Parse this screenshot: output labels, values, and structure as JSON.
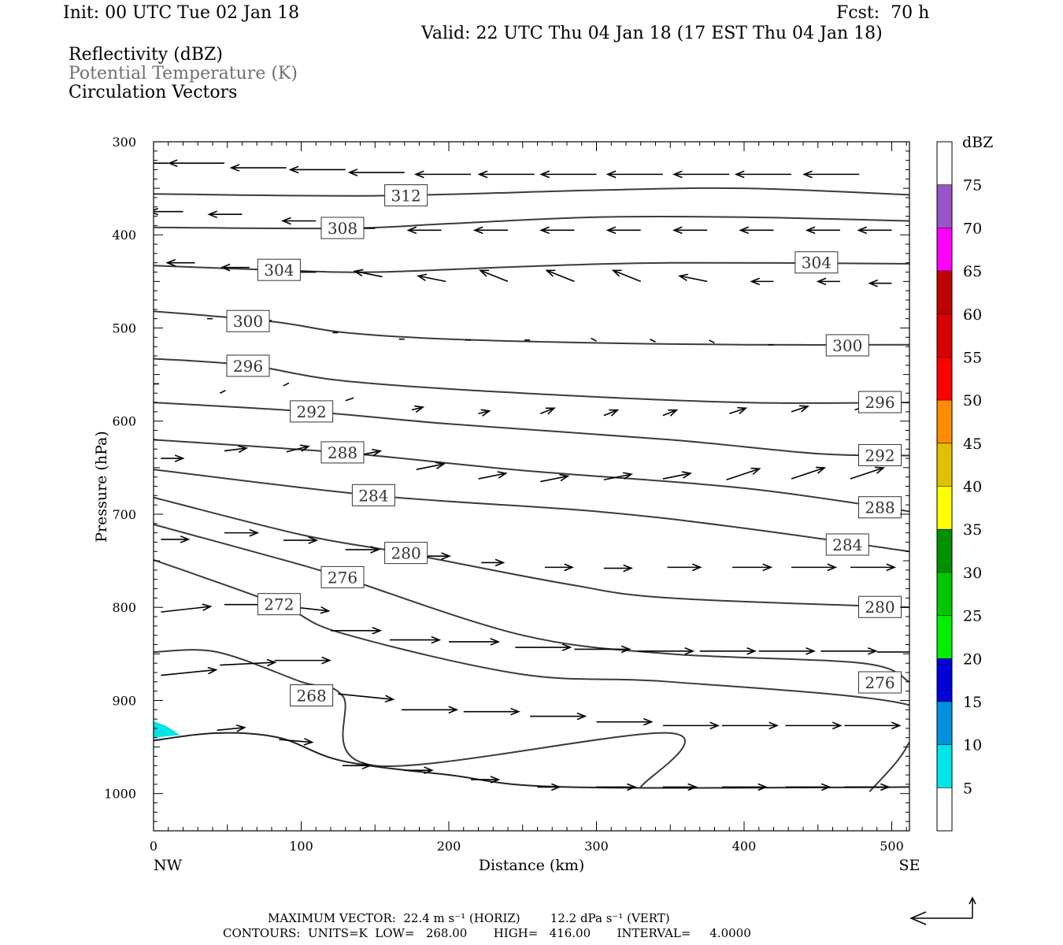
{
  "header": {
    "init": "Init: 00 UTC Tue 02 Jan 18",
    "fcst": "Fcst:  70 h",
    "valid": "Valid: 22 UTC Thu 04 Jan 18 (17 EST Thu 04 Jan 18)",
    "fields": [
      "Reflectivity (dBZ)",
      "Potential Temperature (K)",
      "Circulation Vectors"
    ]
  },
  "chart_data": {
    "type": "cross-section",
    "xlabel": "Distance (km)",
    "ylabel": "Pressure (hPa)",
    "x_end_labels": {
      "left": "NW",
      "right": "SE"
    },
    "xlim": [
      0,
      512
    ],
    "ylim": [
      1040,
      300
    ],
    "x_ticks": [
      0,
      100,
      200,
      300,
      400,
      500
    ],
    "y_ticks": [
      300,
      400,
      500,
      600,
      700,
      800,
      900,
      1000
    ],
    "theta_contours": [
      {
        "value": 312,
        "points": [
          [
            0,
            356
          ],
          [
            150,
            358
          ],
          [
            300,
            352
          ],
          [
            400,
            350
          ],
          [
            512,
            357
          ]
        ],
        "label_at": [
          171,
          358
        ]
      },
      {
        "value": 308,
        "points": [
          [
            0,
            392
          ],
          [
            130,
            393
          ],
          [
            200,
            388
          ],
          [
            300,
            381
          ],
          [
            400,
            381
          ],
          [
            512,
            385
          ]
        ],
        "label_at": [
          128,
          393
        ]
      },
      {
        "value": 304,
        "points": [
          [
            0,
            433
          ],
          [
            85,
            438
          ],
          [
            150,
            440
          ],
          [
            250,
            434
          ],
          [
            350,
            430
          ],
          [
            512,
            431
          ]
        ],
        "labels_at": [
          [
            85,
            438
          ],
          [
            449,
            430
          ]
        ]
      },
      {
        "value": 300,
        "points": [
          [
            0,
            482
          ],
          [
            80,
            493
          ],
          [
            130,
            505
          ],
          [
            200,
            512
          ],
          [
            300,
            516
          ],
          [
            400,
            518
          ],
          [
            512,
            518
          ]
        ],
        "labels_at": [
          [
            64,
            493
          ],
          [
            470,
            519
          ]
        ]
      },
      {
        "value": 296,
        "points": [
          [
            0,
            533
          ],
          [
            64,
            540
          ],
          [
            130,
            557
          ],
          [
            250,
            570
          ],
          [
            400,
            580
          ],
          [
            512,
            580
          ]
        ],
        "labels_at": [
          [
            64,
            541
          ],
          [
            492,
            580
          ]
        ]
      },
      {
        "value": 292,
        "points": [
          [
            0,
            580
          ],
          [
            107,
            590
          ],
          [
            200,
            603
          ],
          [
            350,
            620
          ],
          [
            450,
            635
          ],
          [
            512,
            637
          ]
        ],
        "labels_at": [
          [
            107,
            590
          ],
          [
            492,
            637
          ]
        ]
      },
      {
        "value": 288,
        "points": [
          [
            0,
            620
          ],
          [
            128,
            634
          ],
          [
            250,
            653
          ],
          [
            400,
            672
          ],
          [
            512,
            697
          ]
        ],
        "labels_at": [
          [
            128,
            634
          ],
          [
            492,
            693
          ]
        ]
      },
      {
        "value": 284,
        "points": [
          [
            0,
            652
          ],
          [
            150,
            680
          ],
          [
            300,
            697
          ],
          [
            400,
            715
          ],
          [
            512,
            740
          ]
        ],
        "labels_at": [
          [
            149,
            680
          ],
          [
            470,
            733
          ]
        ]
      },
      {
        "value": 280,
        "points": [
          [
            0,
            682
          ],
          [
            100,
            722
          ],
          [
            171,
            742
          ],
          [
            280,
            775
          ],
          [
            350,
            790
          ],
          [
            512,
            800
          ]
        ],
        "labels_at": [
          [
            171,
            742
          ],
          [
            492,
            800
          ]
        ]
      },
      {
        "value": 276,
        "points": [
          [
            0,
            711
          ],
          [
            90,
            750
          ],
          [
            128,
            768
          ],
          [
            250,
            830
          ],
          [
            350,
            850
          ],
          [
            480,
            860
          ],
          [
            512,
            880
          ]
        ],
        "labels_at": [
          [
            128,
            768
          ],
          [
            492,
            881
          ]
        ]
      },
      {
        "value": 272,
        "points": [
          [
            0,
            749
          ],
          [
            85,
            797
          ],
          [
            128,
            828
          ],
          [
            250,
            872
          ],
          [
            350,
            880
          ],
          [
            512,
            905
          ],
          [
            510,
            950
          ],
          [
            485,
            998
          ]
        ],
        "labels_at": [
          [
            85,
            797
          ]
        ]
      },
      {
        "value": 268,
        "points": [
          [
            0,
            848
          ],
          [
            43,
            848
          ],
          [
            100,
            880
          ],
          [
            128,
            895
          ],
          [
            150,
            970
          ],
          [
            350,
            935
          ],
          [
            330,
            993
          ]
        ],
        "labels_at": [
          [
            107,
            895
          ]
        ]
      }
    ],
    "reflectivity_areas": [
      {
        "dbz": 5,
        "points": [
          [
            0,
            922
          ],
          [
            8,
            927
          ],
          [
            18,
            937
          ],
          [
            0,
            940
          ]
        ]
      }
    ],
    "terrain_pressure": [
      [
        0,
        943
      ],
      [
        43,
        935
      ],
      [
        85,
        940
      ],
      [
        128,
        965
      ],
      [
        200,
        980
      ],
      [
        280,
        993
      ],
      [
        512,
        993
      ]
    ],
    "vectors": [
      {
        "x": 10,
        "p": 323,
        "u": -1,
        "w": 0
      },
      {
        "x": 48,
        "p": 323,
        "u": -1,
        "w": 0
      },
      {
        "x": 90,
        "p": 328,
        "u": -1,
        "w": 0
      },
      {
        "x": 130,
        "p": 330,
        "u": -1,
        "w": 0
      },
      {
        "x": 170,
        "p": 333,
        "u": -1,
        "w": 0
      },
      {
        "x": 215,
        "p": 335,
        "u": -1,
        "w": 0
      },
      {
        "x": 258,
        "p": 335,
        "u": -1,
        "w": 0
      },
      {
        "x": 300,
        "p": 335,
        "u": -1,
        "w": 0
      },
      {
        "x": 345,
        "p": 335,
        "u": -1,
        "w": 0
      },
      {
        "x": 390,
        "p": 335,
        "u": -1,
        "w": 0
      },
      {
        "x": 432,
        "p": 335,
        "u": -1,
        "w": 0
      },
      {
        "x": 478,
        "p": 335,
        "u": -1,
        "w": 0
      },
      {
        "x": 20,
        "p": 375,
        "u": -0.6,
        "w": 0
      },
      {
        "x": 60,
        "p": 378,
        "u": -0.6,
        "w": 0
      },
      {
        "x": 110,
        "p": 385,
        "u": -0.6,
        "w": 0
      },
      {
        "x": 150,
        "p": 393,
        "u": -0.6,
        "w": 0
      },
      {
        "x": 195,
        "p": 395,
        "u": -0.6,
        "w": 0
      },
      {
        "x": 240,
        "p": 395,
        "u": -0.6,
        "w": 0
      },
      {
        "x": 285,
        "p": 395,
        "u": -0.6,
        "w": 0
      },
      {
        "x": 330,
        "p": 395,
        "u": -0.6,
        "w": 0
      },
      {
        "x": 375,
        "p": 395,
        "u": -0.6,
        "w": 0
      },
      {
        "x": 420,
        "p": 395,
        "u": -0.6,
        "w": 0
      },
      {
        "x": 465,
        "p": 395,
        "u": -0.6,
        "w": 0
      },
      {
        "x": 500,
        "p": 395,
        "u": -0.6,
        "w": 0
      },
      {
        "x": 28,
        "p": 430,
        "u": -0.5,
        "w": 0
      },
      {
        "x": 65,
        "p": 435,
        "u": -0.5,
        "w": 0
      },
      {
        "x": 110,
        "p": 440,
        "u": -0.5,
        "w": 0
      },
      {
        "x": 155,
        "p": 445,
        "u": -0.5,
        "w": 0.1
      },
      {
        "x": 198,
        "p": 450,
        "u": -0.5,
        "w": 0.1
      },
      {
        "x": 240,
        "p": 450,
        "u": -0.5,
        "w": 0.2
      },
      {
        "x": 285,
        "p": 450,
        "u": -0.5,
        "w": 0.2
      },
      {
        "x": 330,
        "p": 450,
        "u": -0.5,
        "w": 0.2
      },
      {
        "x": 375,
        "p": 450,
        "u": -0.5,
        "w": 0.1
      },
      {
        "x": 420,
        "p": 450,
        "u": -0.4,
        "w": 0
      },
      {
        "x": 465,
        "p": 450,
        "u": -0.4,
        "w": 0
      },
      {
        "x": 500,
        "p": 452,
        "u": -0.4,
        "w": 0
      },
      {
        "x": 40,
        "p": 490,
        "u": -0.1,
        "w": 0
      },
      {
        "x": 80,
        "p": 492,
        "u": -0.1,
        "w": 0
      },
      {
        "x": 125,
        "p": 505,
        "u": -0.1,
        "w": 0
      },
      {
        "x": 170,
        "p": 512,
        "u": -0.1,
        "w": 0
      },
      {
        "x": 215,
        "p": 513,
        "u": -0.1,
        "w": 0
      },
      {
        "x": 255,
        "p": 513,
        "u": -0.1,
        "w": 0
      },
      {
        "x": 300,
        "p": 514,
        "u": -0.1,
        "w": 0.05
      },
      {
        "x": 340,
        "p": 515,
        "u": -0.1,
        "w": 0.05
      },
      {
        "x": 380,
        "p": 516,
        "u": -0.1,
        "w": 0.05
      },
      {
        "x": 420,
        "p": 518,
        "u": -0.1,
        "w": 0
      },
      {
        "x": 0,
        "p": 560,
        "u": 0.1,
        "w": 0
      },
      {
        "x": 45,
        "p": 570,
        "u": 0.1,
        "w": 0.05
      },
      {
        "x": 88,
        "p": 562,
        "u": 0.1,
        "w": 0.05
      },
      {
        "x": 130,
        "p": 578,
        "u": 0.15,
        "w": 0.05
      },
      {
        "x": 175,
        "p": 588,
        "u": 0.2,
        "w": 0.05
      },
      {
        "x": 220,
        "p": 592,
        "u": 0.2,
        "w": 0.05
      },
      {
        "x": 262,
        "p": 592,
        "u": 0.25,
        "w": 0.1
      },
      {
        "x": 305,
        "p": 594,
        "u": 0.25,
        "w": 0.1
      },
      {
        "x": 345,
        "p": 594,
        "u": 0.25,
        "w": 0.1
      },
      {
        "x": 390,
        "p": 592,
        "u": 0.3,
        "w": 0.1
      },
      {
        "x": 432,
        "p": 590,
        "u": 0.3,
        "w": 0.1
      },
      {
        "x": 475,
        "p": 588,
        "u": 0.3,
        "w": 0.1
      },
      {
        "x": 5,
        "p": 640,
        "u": 0.4,
        "w": 0
      },
      {
        "x": 48,
        "p": 632,
        "u": 0.4,
        "w": 0.05
      },
      {
        "x": 90,
        "p": 633,
        "u": 0.4,
        "w": 0.1
      },
      {
        "x": 135,
        "p": 638,
        "u": 0.5,
        "w": 0.1
      },
      {
        "x": 178,
        "p": 652,
        "u": 0.5,
        "w": 0.1
      },
      {
        "x": 220,
        "p": 662,
        "u": 0.5,
        "w": 0.1
      },
      {
        "x": 262,
        "p": 665,
        "u": 0.5,
        "w": 0.1
      },
      {
        "x": 305,
        "p": 663,
        "u": 0.5,
        "w": 0.1
      },
      {
        "x": 345,
        "p": 662,
        "u": 0.5,
        "w": 0.1
      },
      {
        "x": 388,
        "p": 663,
        "u": 0.6,
        "w": 0.2
      },
      {
        "x": 432,
        "p": 662,
        "u": 0.6,
        "w": 0.2
      },
      {
        "x": 472,
        "p": 662,
        "u": 0.6,
        "w": 0.2
      },
      {
        "x": 5,
        "p": 727,
        "u": 0.5,
        "w": 0
      },
      {
        "x": 48,
        "p": 720,
        "u": 0.6,
        "w": 0
      },
      {
        "x": 88,
        "p": 728,
        "u": 0.6,
        "w": 0
      },
      {
        "x": 130,
        "p": 738,
        "u": 0.6,
        "w": 0
      },
      {
        "x": 178,
        "p": 745,
        "u": 0.6,
        "w": 0
      },
      {
        "x": 222,
        "p": 752,
        "u": 0.4,
        "w": 0
      },
      {
        "x": 265,
        "p": 757,
        "u": 0.5,
        "w": 0
      },
      {
        "x": 305,
        "p": 758,
        "u": 0.5,
        "w": 0
      },
      {
        "x": 348,
        "p": 757,
        "u": 0.6,
        "w": 0
      },
      {
        "x": 392,
        "p": 757,
        "u": 0.7,
        "w": 0
      },
      {
        "x": 432,
        "p": 757,
        "u": 0.8,
        "w": 0
      },
      {
        "x": 472,
        "p": 757,
        "u": 0.8,
        "w": 0
      },
      {
        "x": 5,
        "p": 805,
        "u": 0.9,
        "w": 0.1
      },
      {
        "x": 48,
        "p": 797,
        "u": 0.8,
        "w": 0
      },
      {
        "x": 85,
        "p": 798,
        "u": 0.9,
        "w": -0.1
      },
      {
        "x": 120,
        "p": 825,
        "u": 0.9,
        "w": 0
      },
      {
        "x": 160,
        "p": 835,
        "u": 0.9,
        "w": 0
      },
      {
        "x": 200,
        "p": 837,
        "u": 0.9,
        "w": 0
      },
      {
        "x": 245,
        "p": 843,
        "u": 1,
        "w": 0
      },
      {
        "x": 285,
        "p": 845,
        "u": 1,
        "w": 0
      },
      {
        "x": 328,
        "p": 847,
        "u": 1,
        "w": 0
      },
      {
        "x": 370,
        "p": 847,
        "u": 1,
        "w": 0
      },
      {
        "x": 410,
        "p": 847,
        "u": 1,
        "w": 0
      },
      {
        "x": 452,
        "p": 847,
        "u": 1,
        "w": 0
      },
      {
        "x": 490,
        "p": 848,
        "u": 1,
        "w": 0
      },
      {
        "x": 5,
        "p": 873,
        "u": 1,
        "w": 0.1
      },
      {
        "x": 45,
        "p": 862,
        "u": 1,
        "w": 0.05
      },
      {
        "x": 82,
        "p": 857,
        "u": 1,
        "w": 0
      },
      {
        "x": 125,
        "p": 893,
        "u": 1,
        "w": -0.1
      },
      {
        "x": 168,
        "p": 910,
        "u": 1,
        "w": 0
      },
      {
        "x": 210,
        "p": 912,
        "u": 1,
        "w": 0
      },
      {
        "x": 255,
        "p": 917,
        "u": 1,
        "w": 0
      },
      {
        "x": 300,
        "p": 923,
        "u": 1,
        "w": 0
      },
      {
        "x": 345,
        "p": 927,
        "u": 1,
        "w": 0
      },
      {
        "x": 385,
        "p": 927,
        "u": 1,
        "w": 0
      },
      {
        "x": 428,
        "p": 927,
        "u": 1,
        "w": 0
      },
      {
        "x": 468,
        "p": 927,
        "u": 1,
        "w": 0
      },
      {
        "x": 43,
        "p": 932,
        "u": 0.5,
        "w": 0.05
      },
      {
        "x": 85,
        "p": 942,
        "u": 0.6,
        "w": -0.05
      },
      {
        "x": 128,
        "p": 970,
        "u": 0.5,
        "w": 0
      },
      {
        "x": 170,
        "p": 975,
        "u": 0.5,
        "w": 0
      },
      {
        "x": 215,
        "p": 985,
        "u": 0.5,
        "w": 0
      },
      {
        "x": 260,
        "p": 993,
        "u": 0.4,
        "w": 0
      },
      {
        "x": 300,
        "p": 993,
        "u": 0.7,
        "w": 0
      },
      {
        "x": 345,
        "p": 993,
        "u": 0.6,
        "w": 0
      },
      {
        "x": 385,
        "p": 993,
        "u": 0.8,
        "w": 0
      },
      {
        "x": 428,
        "p": 993,
        "u": 0.8,
        "w": 0
      },
      {
        "x": 468,
        "p": 993,
        "u": 0.8,
        "w": 0
      }
    ],
    "colorbar": {
      "unit": "dBZ",
      "levels": [
        5,
        10,
        15,
        20,
        25,
        30,
        35,
        40,
        45,
        50,
        55,
        60,
        65,
        70,
        75
      ],
      "colors": [
        "#ffffff",
        "#00e5e5",
        "#0090e0",
        "#0000d8",
        "#00f000",
        "#00c800",
        "#009000",
        "#ffff00",
        "#e0c000",
        "#ff8c00",
        "#ff0000",
        "#d80000",
        "#c00000",
        "#ff00ff",
        "#9955c8",
        "#ffffff"
      ]
    }
  },
  "footer": {
    "line1": "MAXIMUM VECTOR:  22.4 m s⁻¹ (HORIZ)        12.2 dPa s⁻¹ (VERT)",
    "line2": "CONTOURS:  UNITS=K  LOW=   268.00       HIGH=   416.00       INTERVAL=     4.0000"
  },
  "colors": {
    "contour": "#3a3a3a",
    "vector": "#000000",
    "frame": "#000000"
  }
}
